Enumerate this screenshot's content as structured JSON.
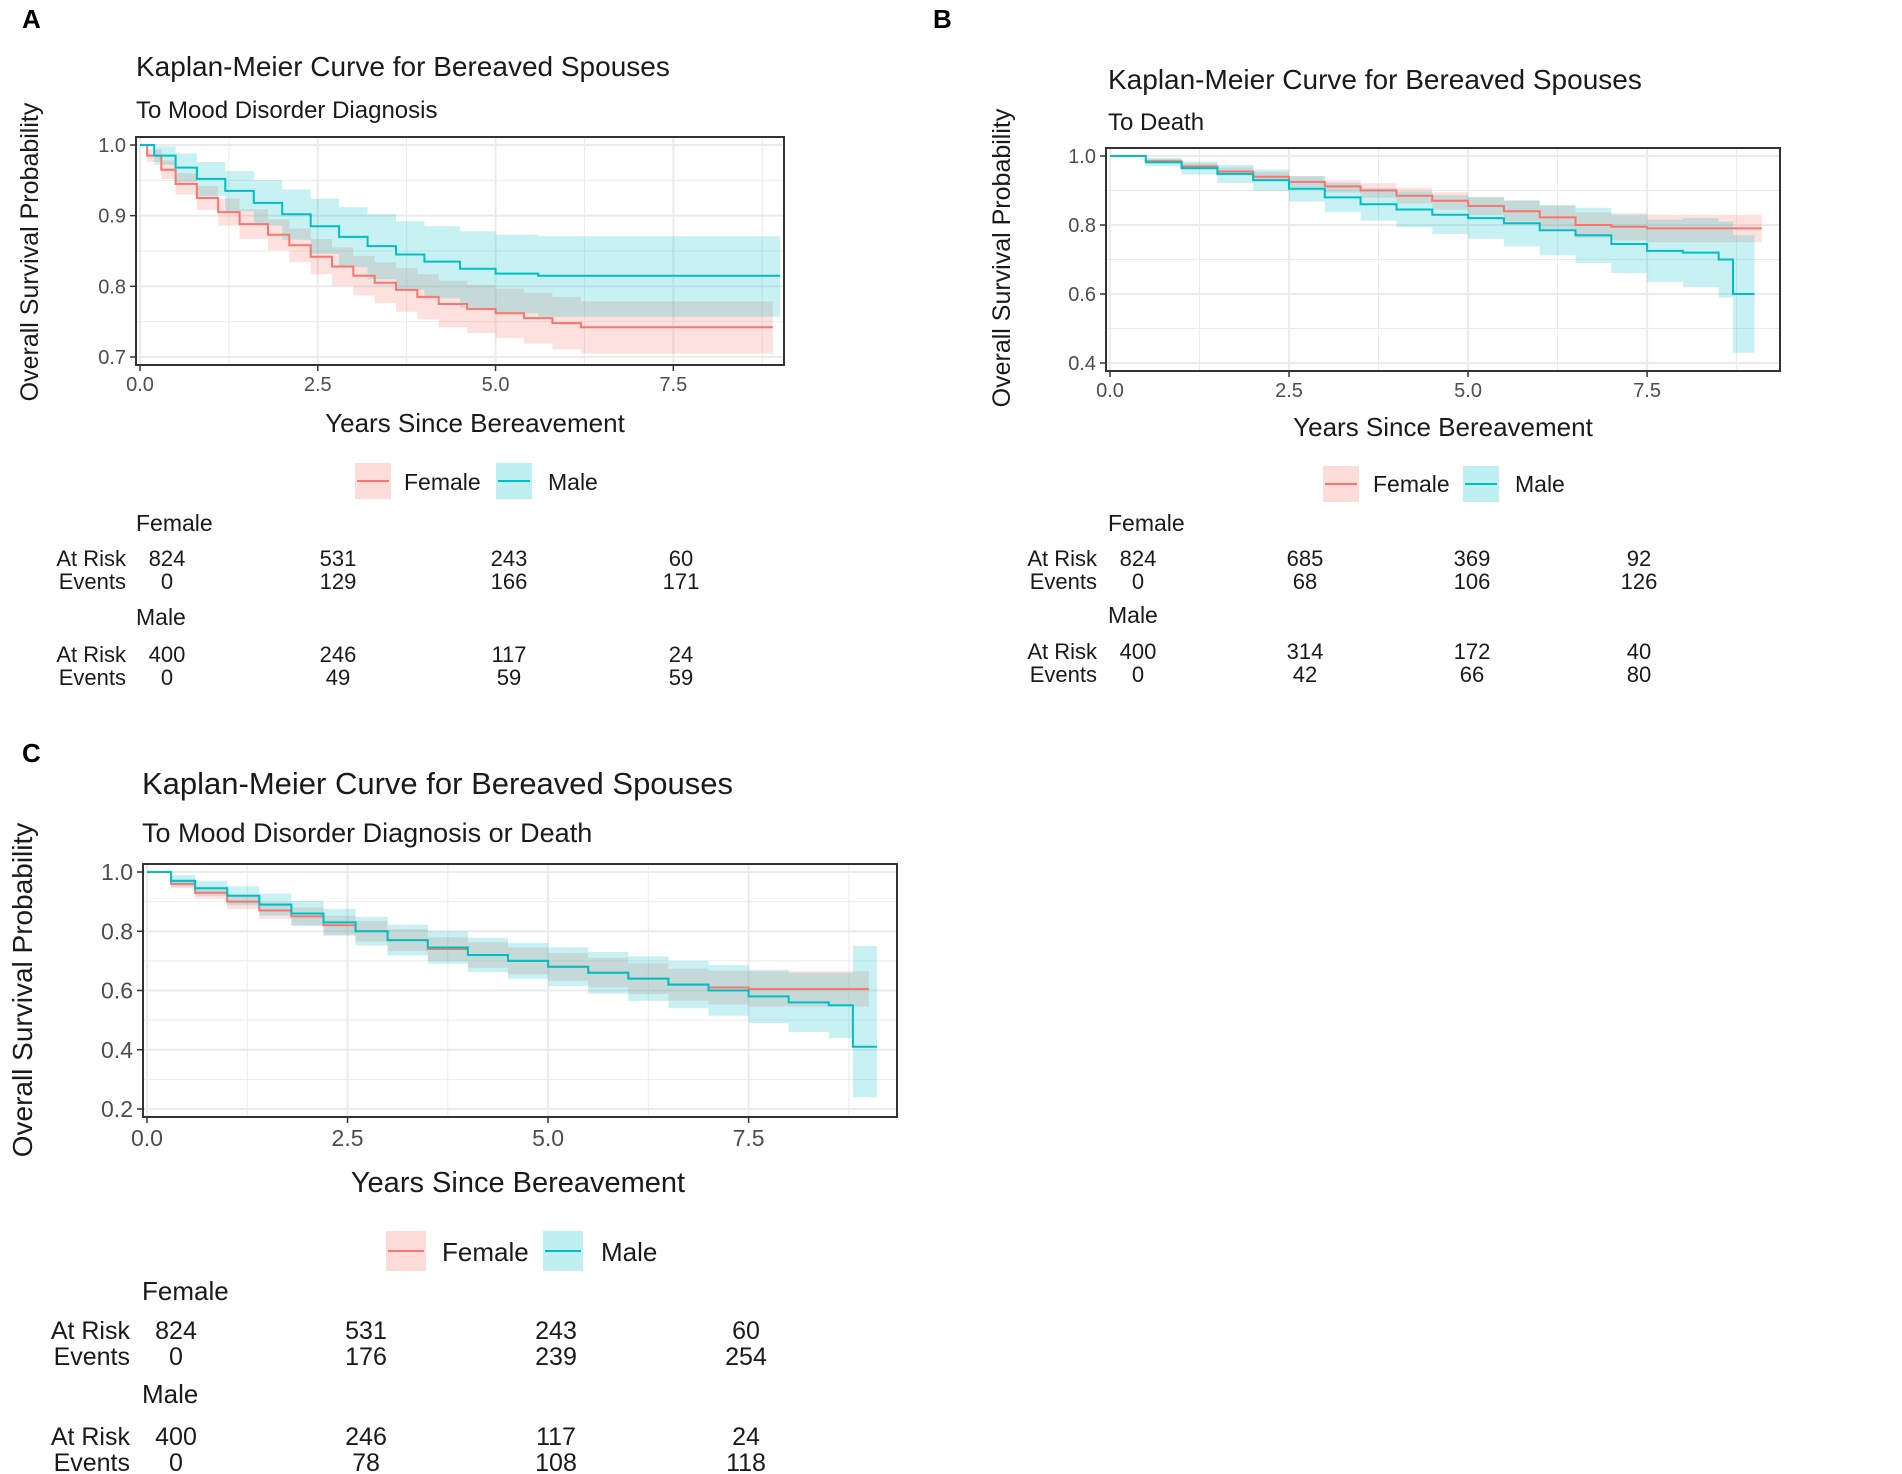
{
  "colors": {
    "female": "#F8766D",
    "female_band": "#F8766D",
    "male": "#00BFC4",
    "male_band": "#00BFC4",
    "grid": "#EBEBEB",
    "panel_border": "#333333",
    "axis_text": "#4D4D4D"
  },
  "legend": {
    "female": "Female",
    "male": "Male"
  },
  "risk_labels": {
    "at_risk": "At Risk",
    "events": "Events"
  },
  "chart_data": [
    {
      "panel": "A",
      "type": "line",
      "chart_style": "kaplan-meier step with confidence band",
      "title": "Kaplan-Meier Curve for Bereaved Spouses",
      "subtitle": "To Mood Disorder Diagnosis",
      "xlabel": "Years Since Bereavement",
      "ylabel": "Overall Survival Probability",
      "xlim": [
        0,
        9
      ],
      "ylim": [
        0.7,
        1.0
      ],
      "xticks": [
        "0.0",
        "2.5",
        "5.0",
        "7.5"
      ],
      "xtick_values": [
        0,
        2.5,
        5,
        7.5
      ],
      "yticks": [
        "0.7",
        "0.8",
        "0.9",
        "1.0"
      ],
      "ytick_values": [
        0.7,
        0.8,
        0.9,
        1.0
      ],
      "series": [
        {
          "name": "Female",
          "x": [
            0,
            0.1,
            0.3,
            0.5,
            0.8,
            1.1,
            1.4,
            1.8,
            2.1,
            2.4,
            2.7,
            3.0,
            3.3,
            3.6,
            3.9,
            4.2,
            4.6,
            5.0,
            5.4,
            5.8,
            6.2,
            6.8,
            7.5,
            8.2,
            8.9
          ],
          "y": [
            1.0,
            0.985,
            0.965,
            0.945,
            0.925,
            0.905,
            0.888,
            0.873,
            0.858,
            0.842,
            0.828,
            0.815,
            0.805,
            0.795,
            0.785,
            0.775,
            0.768,
            0.762,
            0.755,
            0.748,
            0.742,
            0.742,
            0.742,
            0.742,
            0.742
          ],
          "lower": [
            1.0,
            0.976,
            0.952,
            0.93,
            0.908,
            0.886,
            0.867,
            0.851,
            0.834,
            0.817,
            0.801,
            0.787,
            0.776,
            0.764,
            0.753,
            0.742,
            0.734,
            0.727,
            0.719,
            0.711,
            0.705,
            0.705,
            0.705,
            0.705,
            0.705
          ],
          "upper": [
            1.0,
            0.994,
            0.978,
            0.96,
            0.942,
            0.924,
            0.909,
            0.895,
            0.882,
            0.867,
            0.855,
            0.843,
            0.834,
            0.826,
            0.817,
            0.808,
            0.802,
            0.797,
            0.791,
            0.785,
            0.779,
            0.779,
            0.779,
            0.779,
            0.779
          ]
        },
        {
          "name": "Male",
          "x": [
            0,
            0.2,
            0.5,
            0.8,
            1.2,
            1.6,
            2.0,
            2.4,
            2.8,
            3.2,
            3.6,
            4.0,
            4.5,
            5.0,
            5.6,
            6.2,
            7.0,
            8.0,
            9.0
          ],
          "y": [
            1.0,
            0.985,
            0.968,
            0.952,
            0.935,
            0.918,
            0.902,
            0.885,
            0.87,
            0.857,
            0.845,
            0.835,
            0.825,
            0.818,
            0.815,
            0.815,
            0.815,
            0.815,
            0.815
          ],
          "lower": [
            1.0,
            0.972,
            0.948,
            0.928,
            0.906,
            0.886,
            0.866,
            0.846,
            0.827,
            0.81,
            0.795,
            0.783,
            0.77,
            0.762,
            0.757,
            0.757,
            0.757,
            0.757,
            0.757
          ],
          "upper": [
            1.0,
            0.998,
            0.988,
            0.976,
            0.963,
            0.95,
            0.937,
            0.924,
            0.912,
            0.902,
            0.892,
            0.885,
            0.878,
            0.873,
            0.871,
            0.871,
            0.871,
            0.871,
            0.871
          ]
        }
      ],
      "risk_table": {
        "times": [
          "0",
          "2.5",
          "5.0",
          "7.5"
        ],
        "groups": [
          {
            "name": "Female",
            "at_risk": [
              "824",
              "531",
              "243",
              "60"
            ],
            "events": [
              "0",
              "129",
              "166",
              "171"
            ]
          },
          {
            "name": "Male",
            "at_risk": [
              "400",
              "246",
              "117",
              "24"
            ],
            "events": [
              "0",
              "49",
              "59",
              "59"
            ]
          }
        ]
      }
    },
    {
      "panel": "B",
      "type": "line",
      "chart_style": "kaplan-meier step with confidence band",
      "title": "Kaplan-Meier Curve for Bereaved Spouses",
      "subtitle": "To Death",
      "xlabel": "Years Since Bereavement",
      "ylabel": "Overall Survival Probability",
      "xlim": [
        0,
        9.3
      ],
      "ylim": [
        0.4,
        1.0
      ],
      "xticks": [
        "0.0",
        "2.5",
        "5.0",
        "7.5"
      ],
      "xtick_values": [
        0,
        2.5,
        5,
        7.5
      ],
      "yticks": [
        "0.4",
        "0.6",
        "0.8",
        "1.0"
      ],
      "ytick_values": [
        0.4,
        0.6,
        0.8,
        1.0
      ],
      "series": [
        {
          "name": "Female",
          "x": [
            0,
            0.5,
            1.0,
            1.5,
            2.0,
            2.5,
            3.0,
            3.5,
            4.0,
            4.5,
            5.0,
            5.5,
            6.0,
            6.5,
            7.0,
            7.5,
            8.0,
            8.5,
            9.1
          ],
          "y": [
            1.0,
            0.985,
            0.97,
            0.955,
            0.94,
            0.925,
            0.912,
            0.9,
            0.885,
            0.87,
            0.855,
            0.84,
            0.822,
            0.8,
            0.795,
            0.79,
            0.79,
            0.79,
            0.79
          ],
          "lower": [
            1.0,
            0.978,
            0.96,
            0.943,
            0.926,
            0.909,
            0.894,
            0.879,
            0.862,
            0.845,
            0.828,
            0.81,
            0.789,
            0.763,
            0.756,
            0.75,
            0.75,
            0.75,
            0.75
          ],
          "upper": [
            1.0,
            0.992,
            0.98,
            0.967,
            0.954,
            0.941,
            0.93,
            0.921,
            0.908,
            0.895,
            0.882,
            0.87,
            0.855,
            0.837,
            0.834,
            0.83,
            0.83,
            0.83,
            0.83
          ]
        },
        {
          "name": "Male",
          "x": [
            0,
            0.5,
            1.0,
            1.5,
            2.0,
            2.5,
            3.0,
            3.5,
            4.0,
            4.5,
            5.0,
            5.5,
            6.0,
            6.5,
            7.0,
            7.5,
            8.0,
            8.5,
            8.7,
            9.0
          ],
          "y": [
            1.0,
            0.982,
            0.965,
            0.948,
            0.93,
            0.905,
            0.88,
            0.86,
            0.845,
            0.83,
            0.82,
            0.805,
            0.785,
            0.77,
            0.745,
            0.725,
            0.72,
            0.7,
            0.6,
            0.6
          ],
          "lower": [
            1.0,
            0.97,
            0.946,
            0.922,
            0.899,
            0.868,
            0.838,
            0.813,
            0.793,
            0.774,
            0.76,
            0.738,
            0.712,
            0.69,
            0.66,
            0.635,
            0.62,
            0.59,
            0.43,
            0.43
          ],
          "upper": [
            1.0,
            0.994,
            0.984,
            0.974,
            0.961,
            0.942,
            0.922,
            0.907,
            0.897,
            0.886,
            0.88,
            0.872,
            0.858,
            0.85,
            0.83,
            0.815,
            0.82,
            0.81,
            0.77,
            0.77
          ]
        }
      ],
      "risk_table": {
        "times": [
          "0",
          "2.5",
          "5.0",
          "7.5"
        ],
        "groups": [
          {
            "name": "Female",
            "at_risk": [
              "824",
              "685",
              "369",
              "92"
            ],
            "events": [
              "0",
              "68",
              "106",
              "126"
            ]
          },
          {
            "name": "Male",
            "at_risk": [
              "400",
              "314",
              "172",
              "40"
            ],
            "events": [
              "0",
              "42",
              "66",
              "80"
            ]
          }
        ]
      }
    },
    {
      "panel": "C",
      "type": "line",
      "chart_style": "kaplan-meier step with confidence band",
      "title": "Kaplan-Meier Curve for Bereaved Spouses",
      "subtitle": "To Mood Disorder Diagnosis or Death",
      "xlabel": "Years Since Bereavement",
      "ylabel": "Overall Survival Probability",
      "xlim": [
        0,
        9.3
      ],
      "ylim": [
        0.2,
        1.0
      ],
      "xticks": [
        "0.0",
        "2.5",
        "5.0",
        "7.5"
      ],
      "xtick_values": [
        0,
        2.5,
        5,
        7.5
      ],
      "yticks": [
        "0.2",
        "0.4",
        "0.6",
        "0.8",
        "1.0"
      ],
      "ytick_values": [
        0.2,
        0.4,
        0.6,
        0.8,
        1.0
      ],
      "series": [
        {
          "name": "Female",
          "x": [
            0,
            0.3,
            0.6,
            1.0,
            1.4,
            1.8,
            2.2,
            2.6,
            3.0,
            3.5,
            4.0,
            4.5,
            5.0,
            5.5,
            6.0,
            6.5,
            7.0,
            7.5,
            8.0,
            8.5,
            9.0
          ],
          "y": [
            1.0,
            0.96,
            0.93,
            0.9,
            0.87,
            0.85,
            0.82,
            0.8,
            0.77,
            0.74,
            0.72,
            0.7,
            0.68,
            0.66,
            0.64,
            0.62,
            0.61,
            0.605,
            0.605,
            0.605,
            0.605
          ],
          "lower": [
            1.0,
            0.945,
            0.91,
            0.875,
            0.842,
            0.82,
            0.788,
            0.765,
            0.733,
            0.7,
            0.677,
            0.655,
            0.633,
            0.61,
            0.588,
            0.566,
            0.553,
            0.545,
            0.545,
            0.545,
            0.545
          ],
          "upper": [
            1.0,
            0.975,
            0.95,
            0.925,
            0.898,
            0.88,
            0.852,
            0.835,
            0.807,
            0.78,
            0.763,
            0.745,
            0.727,
            0.71,
            0.692,
            0.674,
            0.667,
            0.665,
            0.665,
            0.665,
            0.665
          ]
        },
        {
          "name": "Male",
          "x": [
            0,
            0.3,
            0.6,
            1.0,
            1.4,
            1.8,
            2.2,
            2.6,
            3.0,
            3.5,
            4.0,
            4.5,
            5.0,
            5.5,
            6.0,
            6.5,
            7.0,
            7.5,
            8.0,
            8.5,
            8.8,
            9.1
          ],
          "y": [
            1.0,
            0.97,
            0.945,
            0.92,
            0.89,
            0.86,
            0.83,
            0.8,
            0.77,
            0.745,
            0.72,
            0.7,
            0.68,
            0.66,
            0.64,
            0.62,
            0.6,
            0.58,
            0.56,
            0.55,
            0.41,
            0.41
          ],
          "lower": [
            1.0,
            0.95,
            0.92,
            0.888,
            0.853,
            0.818,
            0.785,
            0.752,
            0.718,
            0.69,
            0.662,
            0.64,
            0.615,
            0.59,
            0.565,
            0.54,
            0.515,
            0.49,
            0.46,
            0.44,
            0.24,
            0.24
          ],
          "upper": [
            1.0,
            0.99,
            0.97,
            0.952,
            0.927,
            0.902,
            0.875,
            0.848,
            0.822,
            0.8,
            0.778,
            0.76,
            0.745,
            0.73,
            0.715,
            0.7,
            0.685,
            0.67,
            0.66,
            0.66,
            0.75,
            0.75
          ]
        }
      ],
      "risk_table": {
        "times": [
          "0",
          "2.5",
          "5.0",
          "7.5"
        ],
        "groups": [
          {
            "name": "Female",
            "at_risk": [
              "824",
              "531",
              "243",
              "60"
            ],
            "events": [
              "0",
              "176",
              "239",
              "254"
            ]
          },
          {
            "name": "Male",
            "at_risk": [
              "400",
              "246",
              "117",
              "24"
            ],
            "events": [
              "0",
              "78",
              "108",
              "118"
            ]
          }
        ]
      }
    }
  ]
}
